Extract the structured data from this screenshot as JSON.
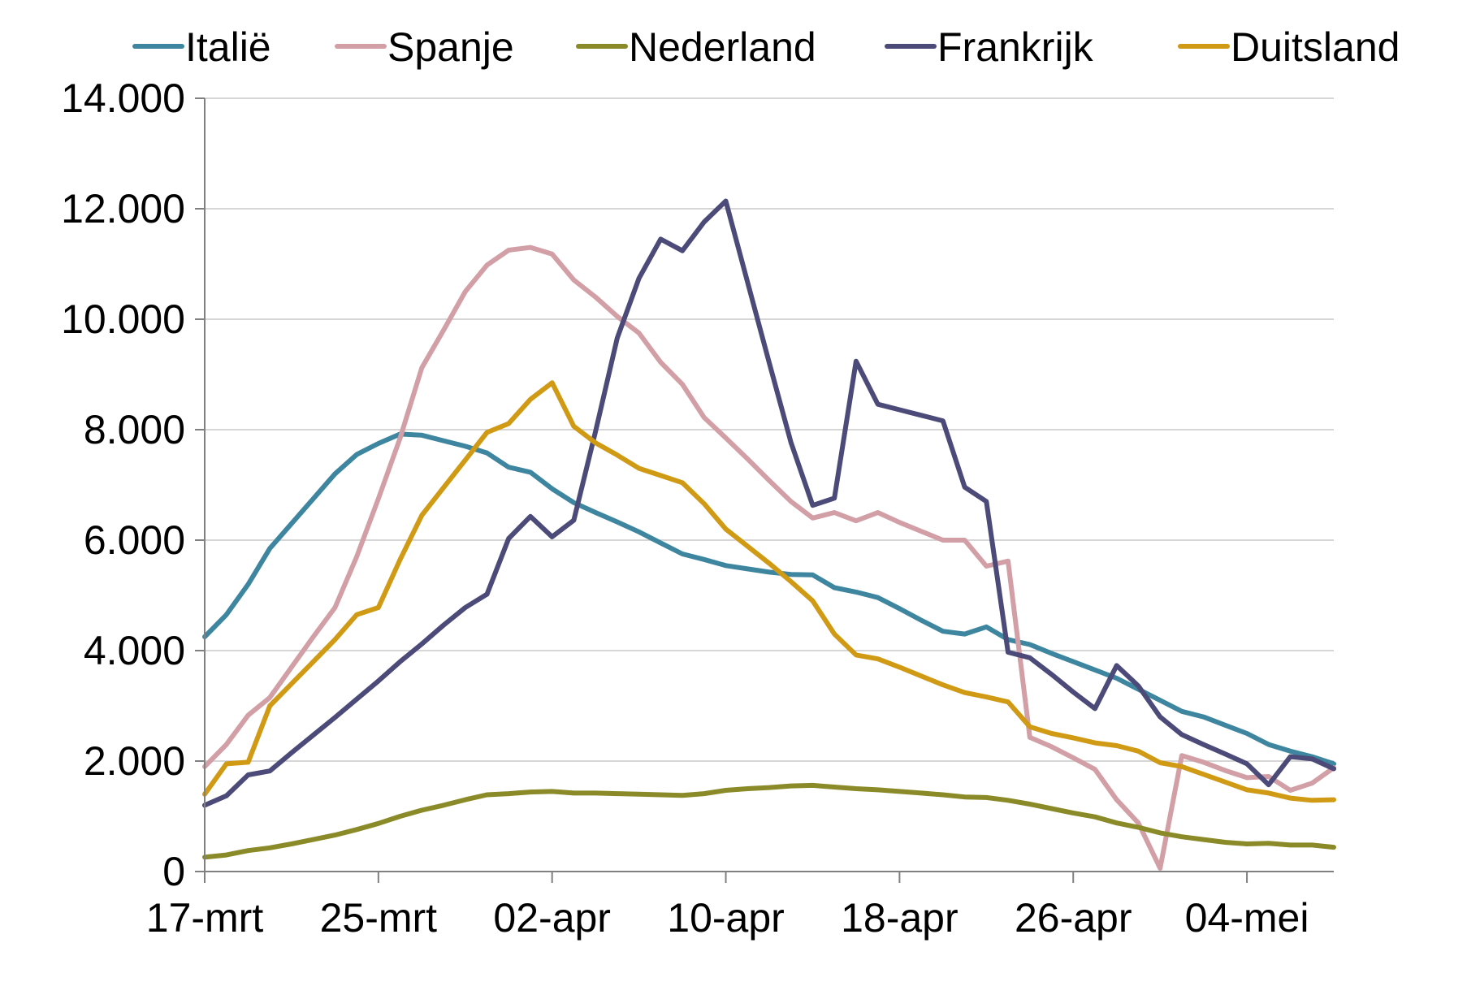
{
  "chart_data": {
    "type": "line",
    "title": "",
    "xlabel": "",
    "ylabel": "",
    "ylim": [
      0,
      14000
    ],
    "y_ticks": [
      0,
      2000,
      4000,
      6000,
      8000,
      10000,
      12000,
      14000
    ],
    "y_tick_labels": [
      "0",
      "2.000",
      "4.000",
      "6.000",
      "8.000",
      "10.000",
      "12.000",
      "14.000"
    ],
    "x_ticks": [
      "17-mrt",
      "25-mrt",
      "02-apr",
      "10-apr",
      "18-apr",
      "26-apr",
      "04-mei"
    ],
    "x_tick_labels": [
      "17-mrt",
      "25-mrt",
      "02-apr",
      "10-apr",
      "18-apr",
      "26-apr",
      "04-mei"
    ],
    "x": [
      "17-mrt",
      "18-mrt",
      "19-mrt",
      "20-mrt",
      "21-mrt",
      "22-mrt",
      "23-mrt",
      "24-mrt",
      "25-mrt",
      "26-mrt",
      "27-mrt",
      "28-mrt",
      "29-mrt",
      "30-mrt",
      "31-mrt",
      "01-apr",
      "02-apr",
      "03-apr",
      "04-apr",
      "05-apr",
      "06-apr",
      "07-apr",
      "08-apr",
      "09-apr",
      "10-apr",
      "11-apr",
      "12-apr",
      "13-apr",
      "14-apr",
      "15-apr",
      "16-apr",
      "17-apr",
      "18-apr",
      "19-apr",
      "20-apr",
      "21-apr",
      "22-apr",
      "23-apr",
      "24-apr",
      "25-apr",
      "26-apr",
      "27-apr",
      "28-apr",
      "29-apr",
      "30-apr",
      "01-mei",
      "02-mei",
      "03-mei",
      "04-mei",
      "05-mei",
      "06-mei",
      "07-mei",
      "08-mei"
    ],
    "grid": true,
    "legend_position": "top",
    "series": [
      {
        "name": "Italië",
        "color": "#3e86a0",
        "values": [
          4250,
          4650,
          5200,
          5850,
          6300,
          6750,
          7200,
          7550,
          7750,
          7920,
          7900,
          7800,
          7700,
          7580,
          7320,
          7230,
          6930,
          6680,
          6500,
          6330,
          6150,
          5950,
          5750,
          5650,
          5540,
          5480,
          5420,
          5380,
          5370,
          5140,
          5060,
          4960,
          4760,
          4550,
          4350,
          4300,
          4430,
          4200,
          4110,
          3950,
          3800,
          3650,
          3500,
          3300,
          3100,
          2900,
          2800,
          2650,
          2500,
          2300,
          2180,
          2080,
          1950
        ]
      },
      {
        "name": "Spanje",
        "color": "#d39fa6",
        "values": [
          1900,
          2300,
          2830,
          3150,
          3700,
          4250,
          4780,
          5700,
          6750,
          7850,
          9120,
          9800,
          10500,
          10980,
          11250,
          11300,
          11180,
          10710,
          10400,
          10050,
          9750,
          9220,
          8820,
          8220,
          7850,
          7470,
          7080,
          6700,
          6400,
          6500,
          6350,
          6500,
          6320,
          6160,
          6000,
          6000,
          5530,
          5620,
          2430,
          2260,
          2060,
          1850,
          1300,
          880,
          60,
          2100,
          1980,
          1830,
          1700,
          1720,
          1470,
          1600,
          1880
        ]
      },
      {
        "name": "Nederland",
        "color": "#8a8a28",
        "values": [
          260,
          300,
          380,
          430,
          500,
          580,
          660,
          760,
          870,
          1000,
          1110,
          1200,
          1300,
          1390,
          1410,
          1440,
          1450,
          1420,
          1420,
          1410,
          1400,
          1390,
          1380,
          1410,
          1470,
          1500,
          1520,
          1550,
          1560,
          1530,
          1500,
          1480,
          1450,
          1420,
          1390,
          1350,
          1340,
          1290,
          1220,
          1140,
          1060,
          990,
          880,
          800,
          700,
          630,
          580,
          530,
          500,
          510,
          480,
          480,
          440
        ]
      },
      {
        "name": "Frankrijk",
        "color": "#4c4a78",
        "values": [
          1200,
          1370,
          1750,
          1820,
          2150,
          2470,
          2790,
          3120,
          3450,
          3800,
          4120,
          4460,
          4780,
          5020,
          6030,
          6430,
          6060,
          6360,
          7970,
          9660,
          10740,
          11450,
          11240,
          11760,
          12140,
          10670,
          9210,
          7770,
          6630,
          6760,
          9240,
          8460,
          8360,
          8260,
          8160,
          6960,
          6700,
          3970,
          3870,
          3570,
          3250,
          2950,
          3730,
          3360,
          2800,
          2480,
          2300,
          2130,
          1950,
          1570,
          2080,
          2040,
          1860
        ]
      },
      {
        "name": "Duitsland",
        "color": "#d09a14",
        "values": [
          1400,
          1950,
          1980,
          3000,
          3400,
          3800,
          4200,
          4650,
          4780,
          5650,
          6450,
          6950,
          7450,
          7950,
          8110,
          8550,
          8850,
          8060,
          7760,
          7540,
          7300,
          7170,
          7040,
          6660,
          6200,
          5890,
          5580,
          5250,
          4900,
          4300,
          3920,
          3850,
          3700,
          3540,
          3380,
          3240,
          3160,
          3070,
          2620,
          2500,
          2420,
          2330,
          2280,
          2180,
          1970,
          1900,
          1760,
          1620,
          1480,
          1420,
          1330,
          1290,
          1300
        ]
      }
    ]
  }
}
